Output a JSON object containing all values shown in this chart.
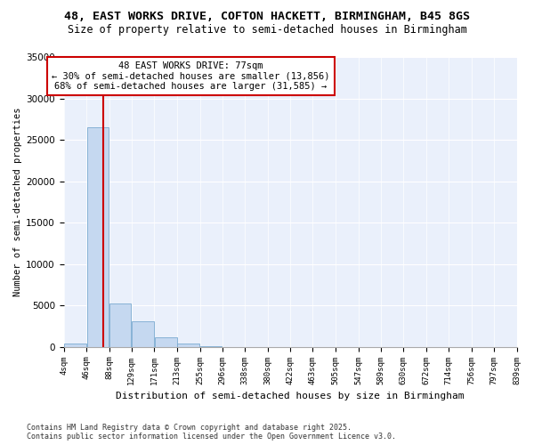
{
  "title": "48, EAST WORKS DRIVE, COFTON HACKETT, BIRMINGHAM, B45 8GS",
  "subtitle": "Size of property relative to semi-detached houses in Birmingham",
  "xlabel": "Distribution of semi-detached houses by size in Birmingham",
  "ylabel": "Number of semi-detached properties",
  "bar_color": "#c5d8f0",
  "bar_edge_color": "#7aaad0",
  "annotation_line_color": "#cc0000",
  "annotation_box_color": "#cc0000",
  "property_size": 77,
  "property_label": "48 EAST WORKS DRIVE: 77sqm",
  "pct_smaller": 30,
  "num_smaller": 13856,
  "pct_larger": 68,
  "num_larger": 31585,
  "bin_edges": [
    4,
    46,
    88,
    129,
    171,
    213,
    255,
    296,
    338,
    380,
    422,
    463,
    505,
    547,
    589,
    630,
    672,
    714,
    756,
    797,
    839
  ],
  "bin_counts": [
    400,
    26500,
    5200,
    3100,
    1200,
    400,
    100,
    0,
    0,
    0,
    0,
    0,
    0,
    0,
    0,
    0,
    0,
    0,
    0,
    0
  ],
  "ylim": [
    0,
    35000
  ],
  "yticks": [
    0,
    5000,
    10000,
    15000,
    20000,
    25000,
    30000,
    35000
  ],
  "tick_labels": [
    "4sqm",
    "46sqm",
    "88sqm",
    "129sqm",
    "171sqm",
    "213sqm",
    "255sqm",
    "296sqm",
    "338sqm",
    "380sqm",
    "422sqm",
    "463sqm",
    "505sqm",
    "547sqm",
    "589sqm",
    "630sqm",
    "672sqm",
    "714sqm",
    "756sqm",
    "797sqm",
    "839sqm"
  ],
  "footnote": "Contains HM Land Registry data © Crown copyright and database right 2025.\nContains public sector information licensed under the Open Government Licence v3.0.",
  "background_color": "#eaf0fb",
  "grid_color": "#ffffff",
  "title_fontsize": 9.5,
  "subtitle_fontsize": 8.5,
  "ylabel_fontsize": 7.5,
  "xlabel_fontsize": 8.0,
  "tick_fontsize": 6.5,
  "annot_fontsize": 7.5,
  "footnote_fontsize": 6.0
}
